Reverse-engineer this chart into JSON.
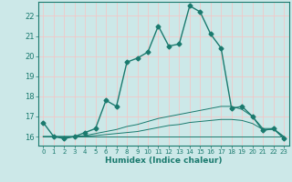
{
  "xlabel": "Humidex (Indice chaleur)",
  "x": [
    0,
    1,
    2,
    3,
    4,
    5,
    6,
    7,
    8,
    9,
    10,
    11,
    12,
    13,
    14,
    15,
    16,
    17,
    18,
    19,
    20,
    21,
    22,
    23
  ],
  "line1": [
    16.7,
    16.0,
    15.9,
    16.0,
    16.2,
    16.4,
    17.8,
    17.5,
    19.7,
    19.9,
    20.2,
    21.5,
    20.5,
    20.6,
    22.5,
    22.2,
    21.1,
    20.4,
    17.4,
    17.5,
    17.0,
    16.3,
    16.4,
    15.9
  ],
  "line2": [
    16.0,
    16.0,
    16.0,
    16.0,
    16.05,
    16.15,
    16.25,
    16.35,
    16.5,
    16.6,
    16.75,
    16.9,
    17.0,
    17.1,
    17.2,
    17.3,
    17.4,
    17.5,
    17.5,
    17.35,
    17.0,
    16.4,
    16.4,
    16.0
  ],
  "line3": [
    16.0,
    16.0,
    16.0,
    16.0,
    16.02,
    16.05,
    16.1,
    16.15,
    16.2,
    16.25,
    16.35,
    16.45,
    16.55,
    16.6,
    16.7,
    16.75,
    16.8,
    16.85,
    16.85,
    16.8,
    16.65,
    16.35,
    16.35,
    16.0
  ],
  "line4": [
    16.0,
    16.0,
    16.0,
    16.0,
    16.0,
    16.0,
    16.0,
    16.0,
    16.0,
    16.0,
    16.0,
    16.0,
    16.0,
    16.0,
    16.0,
    16.0,
    16.0,
    16.0,
    16.0,
    16.0,
    16.0,
    16.0,
    16.0,
    16.0
  ],
  "ylim": [
    15.55,
    22.7
  ],
  "xlim": [
    -0.5,
    23.5
  ],
  "yticks": [
    16,
    17,
    18,
    19,
    20,
    21,
    22
  ],
  "xticks": [
    0,
    1,
    2,
    3,
    4,
    5,
    6,
    7,
    8,
    9,
    10,
    11,
    12,
    13,
    14,
    15,
    16,
    17,
    18,
    19,
    20,
    21,
    22,
    23
  ],
  "line_color": "#1a7a6e",
  "bg_color": "#cce8e8",
  "grid_color": "#f0c8c8",
  "marker": "D",
  "marker_size": 2.5,
  "linewidth_main": 1.0,
  "linewidth_fan": 0.7
}
